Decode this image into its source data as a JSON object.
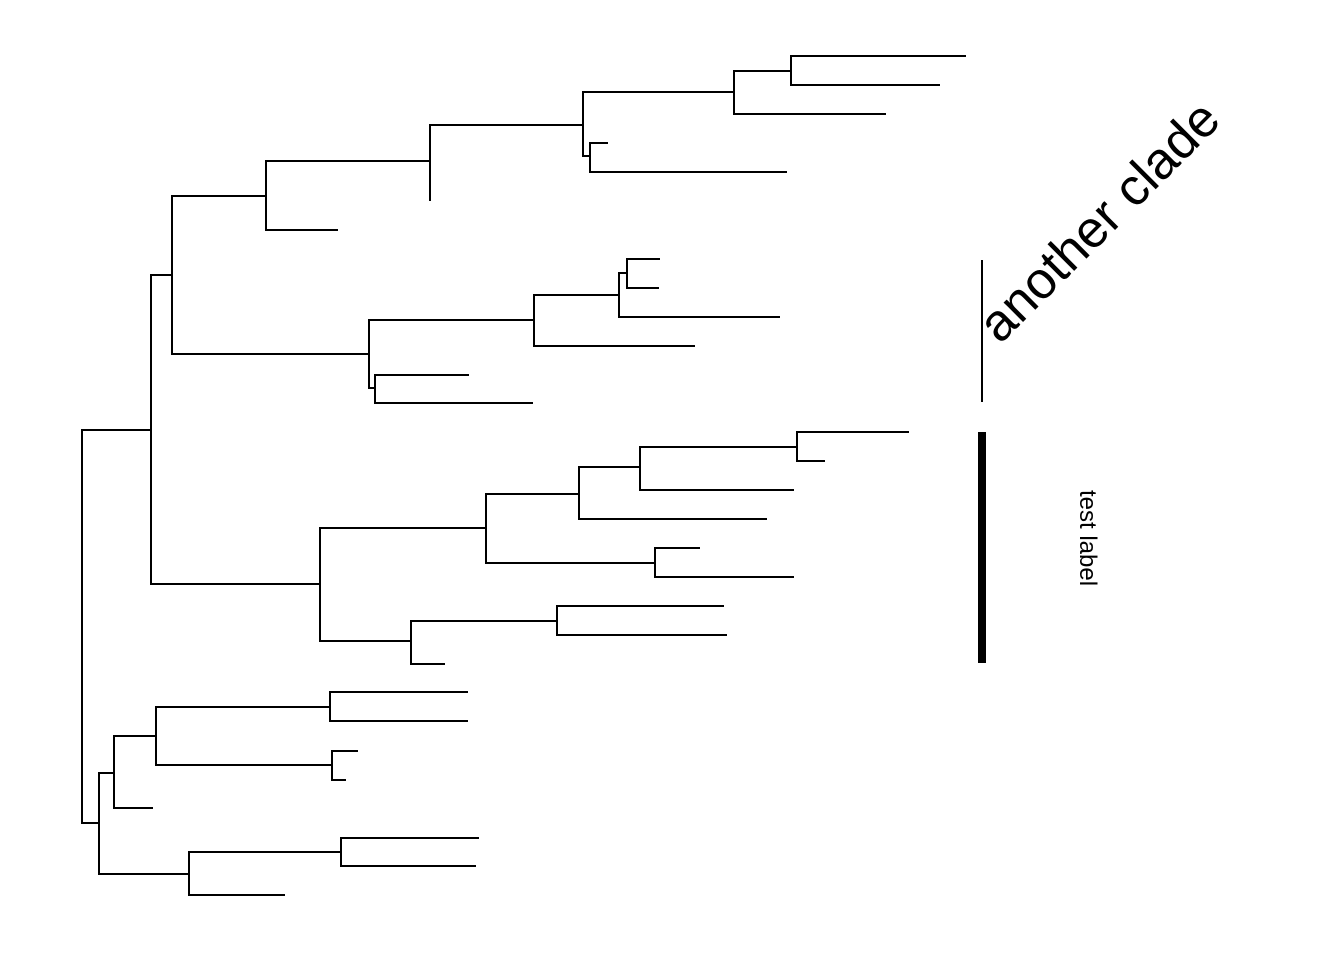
{
  "tree": {
    "type": "phylogram",
    "tip_labels_shown": false,
    "line_color": "#000000"
  },
  "clade_labels": [
    {
      "text": "another clade",
      "bar_style": "thin",
      "angle_deg": -45
    },
    {
      "text": "test label",
      "bar_style": "thick",
      "angle_deg": 90
    }
  ]
}
